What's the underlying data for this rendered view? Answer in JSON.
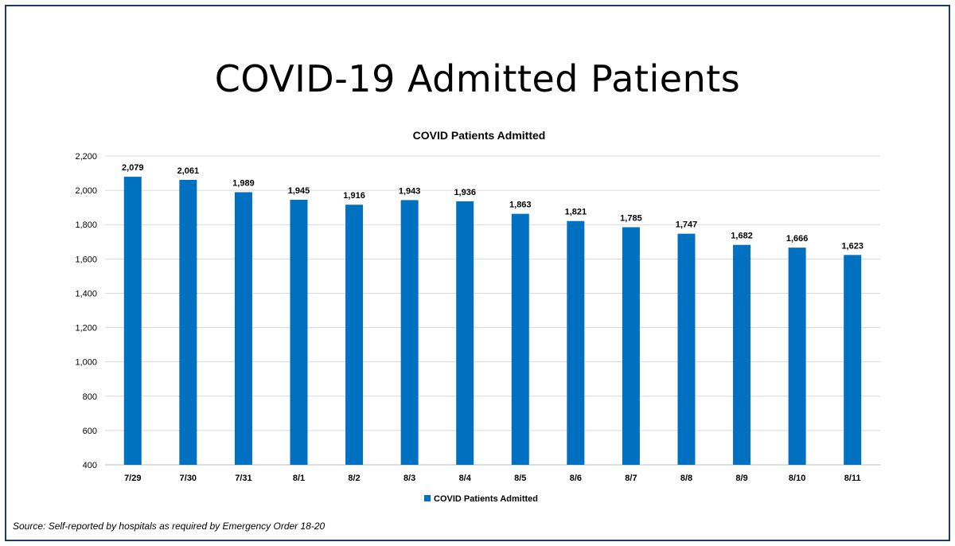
{
  "slide": {
    "title": "COVID-19 Admitted Patients",
    "source": "Source: Self-reported by hospitals as required by Emergency Order 18-20"
  },
  "colors": {
    "bar": "#0070c0",
    "frame": "#1f3864",
    "grid": "#d9d9d9"
  },
  "chart_data": {
    "type": "bar",
    "title": "COVID Patients Admitted",
    "categories": [
      "7/29",
      "7/30",
      "7/31",
      "8/1",
      "8/2",
      "8/3",
      "8/4",
      "8/5",
      "8/6",
      "8/7",
      "8/8",
      "8/9",
      "8/10",
      "8/11"
    ],
    "series": [
      {
        "name": "COVID Patients Admitted",
        "values": [
          2079,
          2061,
          1989,
          1945,
          1916,
          1943,
          1936,
          1863,
          1821,
          1785,
          1747,
          1682,
          1666,
          1623
        ],
        "labels": [
          "2,079",
          "2,061",
          "1,989",
          "1,945",
          "1,916",
          "1,943",
          "1,936",
          "1,863",
          "1,821",
          "1,785",
          "1,747",
          "1,682",
          "1,666",
          "1,623"
        ]
      }
    ],
    "ylim": [
      400,
      2200
    ],
    "yticks": [
      400,
      600,
      800,
      1000,
      1200,
      1400,
      1600,
      1800,
      2000,
      2200
    ],
    "ytick_labels": [
      "400",
      "600",
      "800",
      "1,000",
      "1,200",
      "1,400",
      "1,600",
      "1,800",
      "2,000",
      "2,200"
    ],
    "xlabel": "",
    "ylabel": "",
    "grid": true,
    "legend": "bottom"
  }
}
